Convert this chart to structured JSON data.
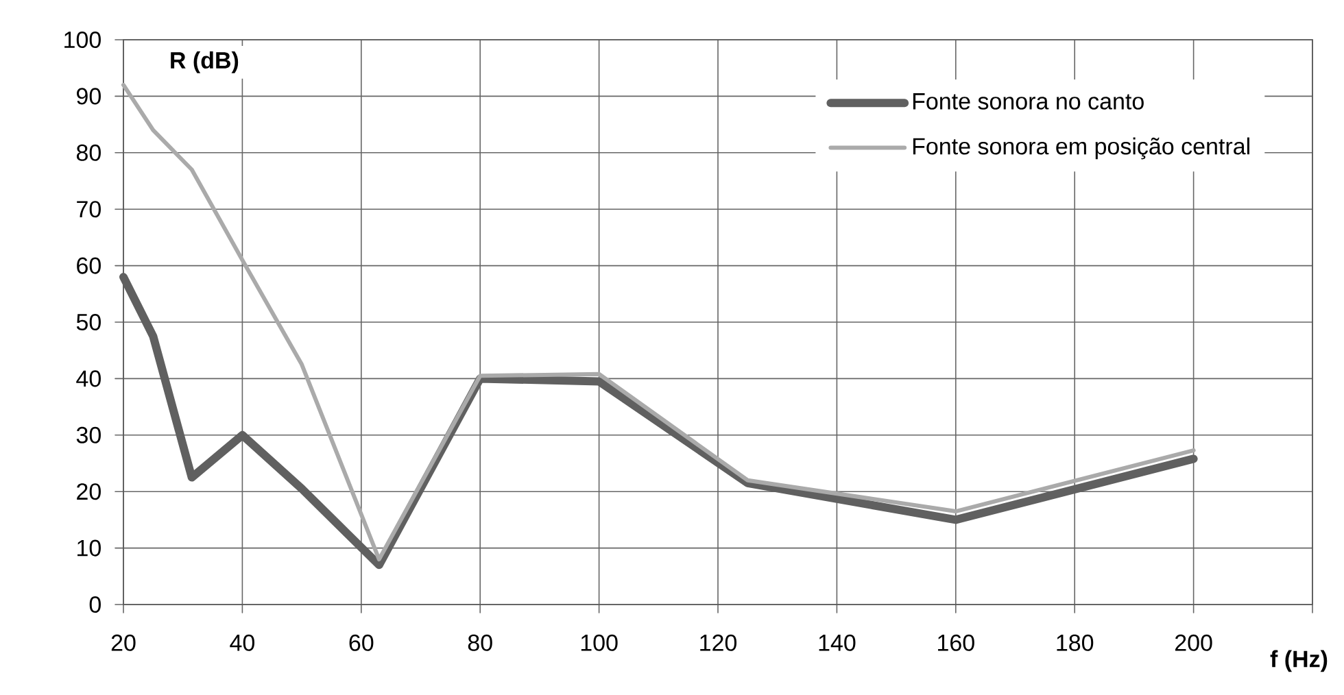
{
  "chart_data": {
    "type": "line",
    "xlabel": "f (Hz)",
    "ylabel": "R (dB)",
    "xlim": [
      20,
      220
    ],
    "xticks": [
      20,
      40,
      60,
      80,
      100,
      120,
      140,
      160,
      180,
      200,
      {
        "value": 220,
        "label": null
      }
    ],
    "ylim": [
      0,
      100
    ],
    "yticks": [
      0,
      10,
      20,
      30,
      40,
      50,
      60,
      70,
      80,
      90,
      100
    ],
    "grid": true,
    "legend": "top right",
    "marker": "none",
    "line_style": "solid",
    "series": [
      {
        "name": "Fonte sonora no canto",
        "color": "#606060",
        "x": [
          20,
          25,
          31.5,
          40,
          50,
          63,
          80,
          100,
          125,
          160,
          200
        ],
        "values": [
          58,
          47.5,
          22.5,
          30,
          20.5,
          7,
          40,
          39.5,
          21.5,
          15,
          25.8
        ]
      },
      {
        "name": "Fonte sonora em posição central",
        "color": "#aaaaaa",
        "x": [
          20,
          25,
          31.5,
          40,
          50,
          63,
          80,
          100,
          125,
          160,
          200
        ],
        "values": [
          92,
          84,
          77,
          61,
          42.5,
          8,
          40.5,
          40.8,
          22,
          16.5,
          27.3
        ]
      }
    ]
  }
}
